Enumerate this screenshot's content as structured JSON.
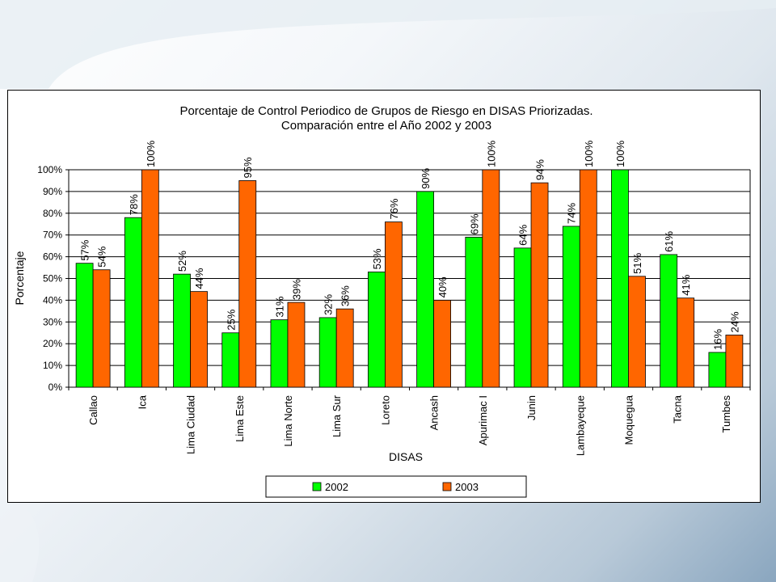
{
  "chart_data": {
    "type": "bar",
    "title": "Porcentaje de Control Periodico de Grupos de Riesgo en DISAS Priorizadas.",
    "subtitle": "Comparación entre el Año 2002 y 2003",
    "xlabel": "DISAS",
    "ylabel": "Porcentaje",
    "ylim": [
      0,
      100
    ],
    "y_ticks": [
      0,
      10,
      20,
      30,
      40,
      50,
      60,
      70,
      80,
      90,
      100
    ],
    "y_tick_suffix": "%",
    "grid": true,
    "legend_position": "bottom",
    "categories": [
      "Callao",
      "Ica",
      "Lima Ciudad",
      "Lima Este",
      "Lima Norte",
      "Lima Sur",
      "Loreto",
      "Ancash",
      "Apurimac I",
      "Junin",
      "Lambayeque",
      "Moquegua",
      "Tacna",
      "Tumbes"
    ],
    "series": [
      {
        "name": "2002",
        "color": "#00ff00",
        "values": [
          57,
          78,
          52,
          25,
          31,
          32,
          53,
          90,
          69,
          64,
          74,
          100,
          61,
          16
        ]
      },
      {
        "name": "2003",
        "color": "#ff6600",
        "values": [
          54,
          100,
          44,
          95,
          39,
          36,
          76,
          40,
          100,
          94,
          100,
          51,
          41,
          24
        ]
      }
    ]
  }
}
